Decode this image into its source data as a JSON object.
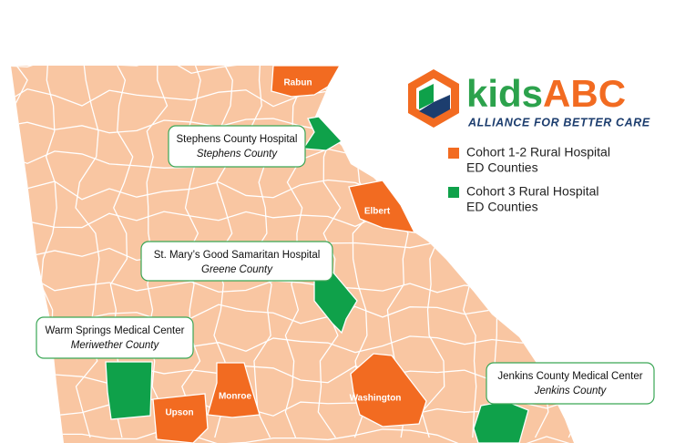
{
  "logo": {
    "kids": "kids",
    "abc": "ABC",
    "tagline": "ALLIANCE FOR BETTER CARE"
  },
  "legend": [
    {
      "label_lines": [
        "Cohort 1-2 Rural Hospital",
        "ED Counties"
      ],
      "color": "#f26b21",
      "counties": [
        "Rabun",
        "Elbert",
        "Upson",
        "Monroe",
        "Washington"
      ]
    },
    {
      "label_lines": [
        "Cohort 3 Rural Hospital",
        "ED Counties"
      ],
      "color": "#0fa14a"
    }
  ],
  "callouts": [
    {
      "hospital": "Stephens County Hospital",
      "county": "Stephens County"
    },
    {
      "hospital": "St. Mary’s Good Samaritan Hospital",
      "county": "Greene County"
    },
    {
      "hospital": "Warm Springs Medical Center",
      "county": "Meriwether County"
    },
    {
      "hospital": "Jenkins County Medical Center",
      "county": "Jenkins County"
    }
  ]
}
